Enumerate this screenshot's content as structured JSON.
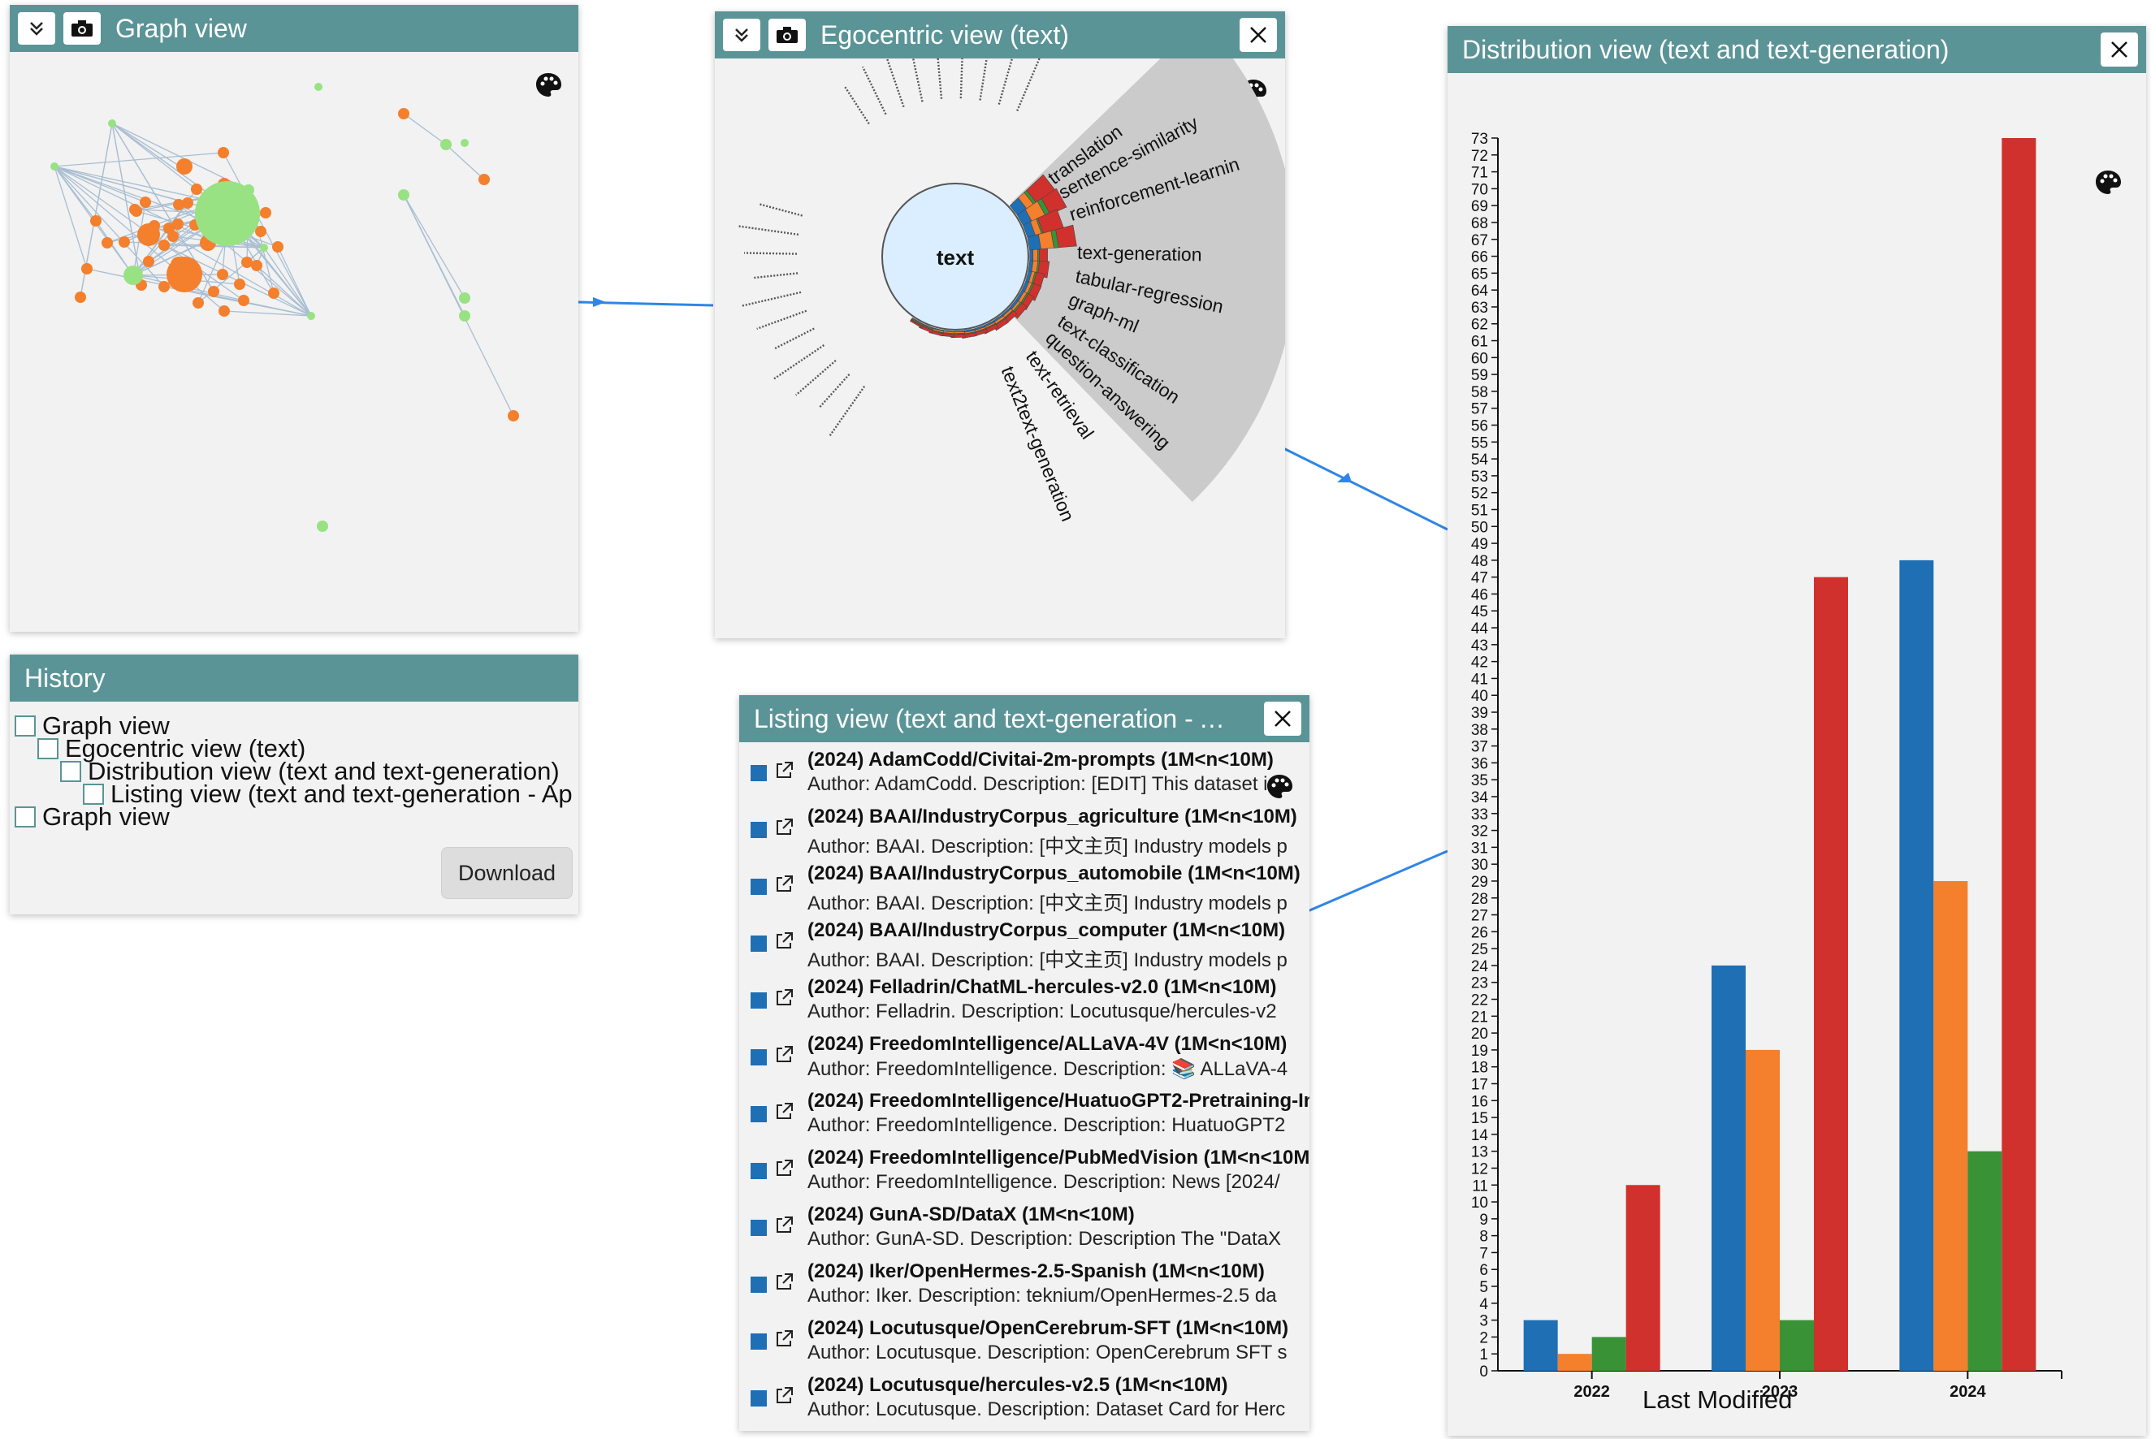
{
  "graph_view": {
    "title": "Graph view"
  },
  "egocentric_view": {
    "title": "Egocentric view (text)",
    "center_label": "text",
    "highlighted_labels": [
      "translation",
      "sentence-similarity",
      "reinforcement-learnin",
      "text-generation",
      "tabular-regression",
      "graph-ml",
      "text-classification",
      "question-answering",
      "text-retrieval",
      "text2text-generation"
    ]
  },
  "distribution_view": {
    "title": "Distribution view (text and text-generation)",
    "xlabel": "Last Modified"
  },
  "history": {
    "title": "History",
    "items": [
      "Graph view",
      "Egocentric view (text)",
      "Distribution view (text and text-generation)",
      "Listing view (text and text-generation - Ap",
      "Graph view"
    ],
    "download_label": "Download"
  },
  "listing_view": {
    "title": "Listing view (text and text-generation - A…",
    "items": [
      {
        "title": "(2024) AdamCodd/Civitai-2m-prompts (1M<n<10M)",
        "desc": "Author: AdamCodd. Description: [EDIT] This dataset is"
      },
      {
        "title": "(2024) BAAI/IndustryCorpus_agriculture (1M<n<10M)",
        "desc": "Author: BAAI. Description: [中文主页] Industry models p"
      },
      {
        "title": "(2024) BAAI/IndustryCorpus_automobile (1M<n<10M)",
        "desc": "Author: BAAI. Description: [中文主页] Industry models p"
      },
      {
        "title": "(2024) BAAI/IndustryCorpus_computer (1M<n<10M)",
        "desc": "Author: BAAI. Description: [中文主页] Industry models p"
      },
      {
        "title": "(2024) Felladrin/ChatML-hercules-v2.0 (1M<n<10M)",
        "desc": "Author: Felladrin. Description: Locutusque/hercules-v2"
      },
      {
        "title": "(2024) FreedomIntelligence/ALLaVA-4V (1M<n<10M)",
        "desc": "Author: FreedomIntelligence. Description: 📚 ALLaVA-4"
      },
      {
        "title": "(2024) FreedomIntelligence/HuatuoGPT2-Pretraining-In",
        "desc": "Author: FreedomIntelligence. Description: HuatuoGPT2"
      },
      {
        "title": "(2024) FreedomIntelligence/PubMedVision (1M<n<10M",
        "desc": "Author: FreedomIntelligence. Description: News [2024/"
      },
      {
        "title": "(2024) GunA-SD/DataX (1M<n<10M)",
        "desc": "Author: GunA-SD. Description: Description The \"DataX"
      },
      {
        "title": "(2024) Iker/OpenHermes-2.5-Spanish (1M<n<10M)",
        "desc": "Author: Iker. Description: teknium/OpenHermes-2.5 da"
      },
      {
        "title": "(2024) Locutusque/OpenCerebrum-SFT (1M<n<10M)",
        "desc": "Author: Locutusque. Description: OpenCerebrum SFT s"
      },
      {
        "title": "(2024) Locutusque/hercules-v2.5 (1M<n<10M)",
        "desc": "Author: Locutusque. Description: Dataset Card for Herc"
      }
    ]
  },
  "colors": {
    "accent": "#5b9497",
    "blue": "#1f6fb4",
    "orange": "#f47f2c",
    "green": "#3a9237",
    "red": "#d0312d"
  },
  "chart_data": {
    "type": "bar",
    "categories": [
      "2022",
      "2023",
      "2024"
    ],
    "series": [
      {
        "values": [
          3,
          24,
          48
        ]
      },
      {
        "values": [
          1,
          19,
          29
        ]
      },
      {
        "values": [
          2,
          3,
          13
        ]
      },
      {
        "values": [
          11,
          47,
          73
        ]
      }
    ],
    "title": "Distribution view (text and text-generation)",
    "xlabel": "Last Modified",
    "ylabel": "",
    "ylim": [
      0,
      73
    ],
    "legend": "none"
  }
}
